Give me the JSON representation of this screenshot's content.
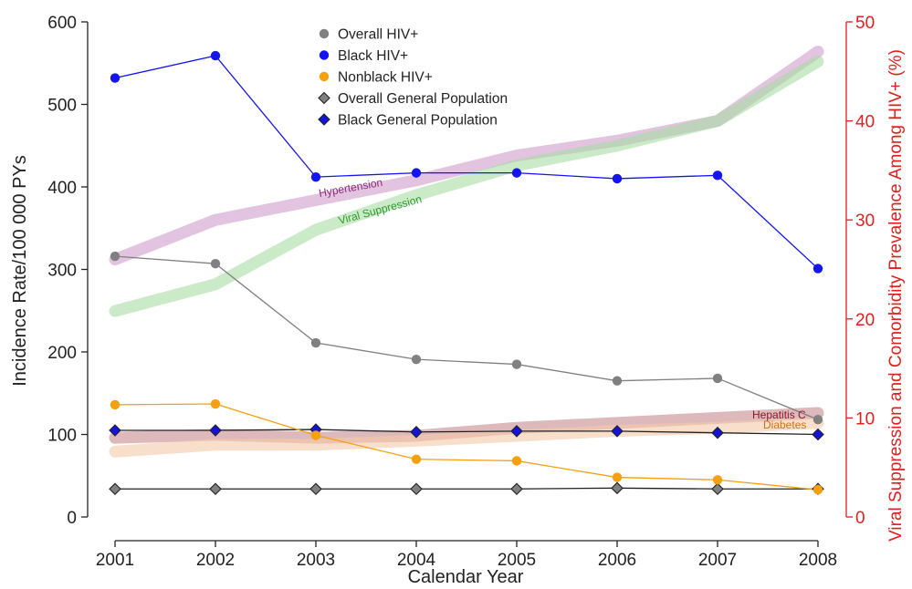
{
  "chart_data": {
    "type": "line",
    "x": [
      2001,
      2002,
      2003,
      2004,
      2005,
      2006,
      2007,
      2008
    ],
    "xlabel": "Calendar Year",
    "ylabel": "Incidence Rate/100 000 PYs",
    "ylabel_right": "Viral Suppression and Comorbidity Prevalence Among HIV+ (%)",
    "ylim": [
      0,
      600
    ],
    "ylim_right": [
      0,
      50
    ],
    "yticks": [
      0,
      100,
      200,
      300,
      400,
      500,
      600
    ],
    "yticks_right": [
      0,
      10,
      20,
      30,
      40,
      50
    ],
    "legend_position": "top-center",
    "series": [
      {
        "name": "Overall HIV+",
        "axis": "left",
        "marker": "circle",
        "color": "#808080",
        "values": [
          316,
          307,
          211,
          191,
          185,
          165,
          168,
          118
        ]
      },
      {
        "name": "Black HIV+",
        "axis": "left",
        "marker": "circle",
        "color": "#1414f0",
        "values": [
          532,
          559,
          412,
          417,
          417,
          410,
          414,
          301
        ]
      },
      {
        "name": "Nonblack HIV+",
        "axis": "left",
        "marker": "circle",
        "color": "#f5a00f",
        "values": [
          136,
          137,
          99,
          70,
          68,
          48,
          45,
          33
        ]
      },
      {
        "name": "Overall General Population",
        "axis": "left",
        "marker": "diamond",
        "color": "#808080",
        "values": [
          34,
          34,
          34,
          34,
          34,
          35,
          34,
          34
        ]
      },
      {
        "name": "Black General Population",
        "axis": "left",
        "marker": "diamond",
        "color": "#1414d8",
        "values": [
          105,
          105,
          106,
          103,
          104,
          104,
          102,
          100
        ]
      }
    ],
    "bands": [
      {
        "name": "Hypertension",
        "axis": "right",
        "color": "#cf9bcb",
        "values": [
          26,
          30,
          32,
          34,
          36.5,
          38,
          40,
          47
        ]
      },
      {
        "name": "Viral Suppression",
        "axis": "right",
        "color": "#a9dca4",
        "values": [
          20.8,
          23.5,
          29,
          32.5,
          35.5,
          37.5,
          40,
          46
        ]
      },
      {
        "name": "Hepatitis C",
        "axis": "right",
        "color": "#c88a8e",
        "values": [
          8,
          8.3,
          8,
          8.2,
          9,
          9.5,
          10,
          10.5
        ]
      },
      {
        "name": "Diabetes",
        "axis": "right",
        "color": "#f3c9a9",
        "values": [
          6.6,
          7.3,
          7.3,
          7.7,
          8.2,
          8.7,
          9,
          9.5
        ]
      }
    ]
  },
  "colors": {
    "right_axis": "#e02020",
    "hypertension_label": "#8a2d7a",
    "viral_suppression_label": "#2e9a2e",
    "hepatitis_label": "#8a1a2a",
    "diabetes_label": "#c8751a"
  }
}
